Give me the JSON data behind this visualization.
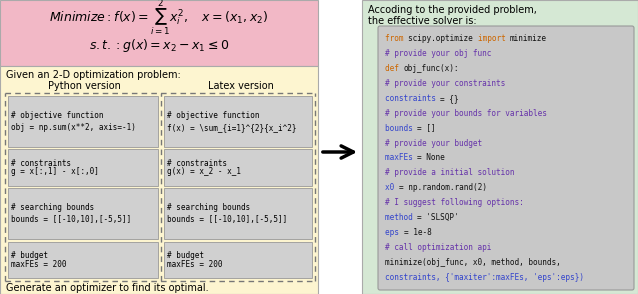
{
  "top_bg": "#f2b8c6",
  "left_bg": "#fdf5d0",
  "right_bg": "#d5e8d4",
  "code_bg": "#c8c8c8",
  "block_bg": "#d0d0d0",
  "left_title": "Given an 2-D optimization problem:",
  "left_footer": "Generate an optimizer to find its optimal.",
  "python_header": "Python version",
  "latex_header": "Latex version",
  "python_blocks": [
    [
      "# objective function",
      "obj = np.sum(x**2, axis=-1)"
    ],
    [
      "# constraints",
      "g = x[:,1] - x[:,0]"
    ],
    [
      "# searching bounds",
      "bounds = [[-10,10],[-5,5]]"
    ],
    [
      "# budget",
      "maxFEs = 200"
    ]
  ],
  "latex_blocks": [
    [
      "# objective function",
      "f(x) = \\sum_{i=1}^{2}{x_i^2}"
    ],
    [
      "# constraints",
      "g(x) = x_2 - x_1"
    ],
    [
      "# searching bounds",
      "bounds = [[-10,10],[-5,5]]"
    ],
    [
      "# budget",
      "maxFEs = 200"
    ]
  ],
  "right_header_1": "Accoding to the provided problem,",
  "right_header_2": "the effective solver is:",
  "color_orange": "#cc6600",
  "color_purple": "#6633aa",
  "color_blue": "#3344cc",
  "color_black": "#111111"
}
